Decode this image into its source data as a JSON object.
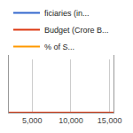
{
  "chart_data": {
    "type": "line",
    "x": [
      2000,
      15500
    ],
    "series": [
      {
        "name": "ficiaries (in...",
        "color": "#3366cc",
        "values": [
          0,
          0
        ]
      },
      {
        "name": "Budget (Crore B...",
        "color": "#dc3912",
        "values": [
          0,
          0
        ]
      },
      {
        "name": "% of S...",
        "color": "#ff9900",
        "values": [
          null,
          null
        ]
      }
    ],
    "xlim": [
      2000,
      15500
    ],
    "xticks": [
      {
        "value": 5000,
        "label": "5,000"
      },
      {
        "value": 10000,
        "label": "10,000"
      },
      {
        "value": 15000,
        "label": "15,000"
      }
    ],
    "ylim": [
      0,
      1
    ],
    "grid": true,
    "legend": "top",
    "tick_labels": "x"
  }
}
